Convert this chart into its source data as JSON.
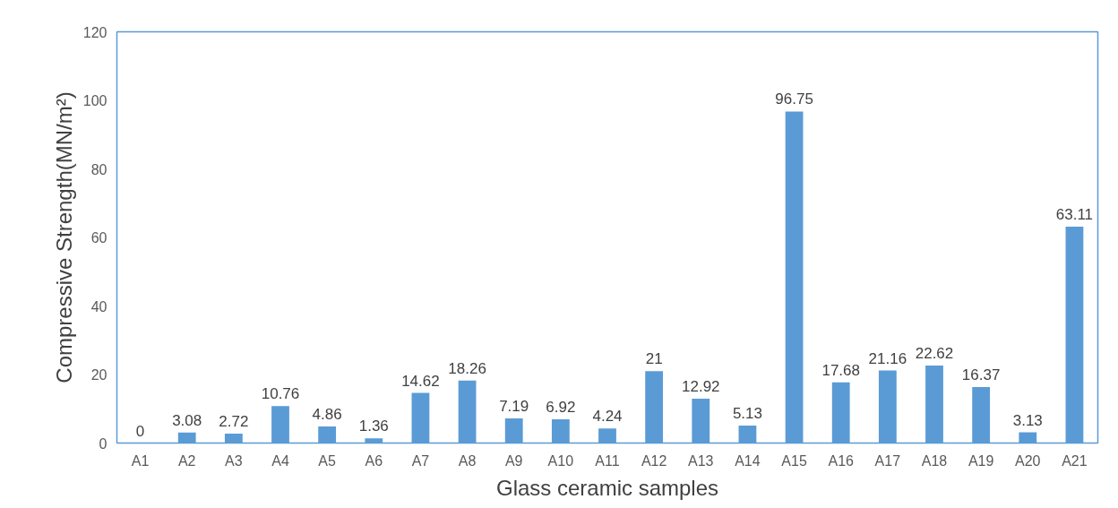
{
  "chart_data": {
    "type": "bar",
    "xlabel": "Glass ceramic samples",
    "ylabel": "Compressive Strength(MN/m²)",
    "categories": [
      "A1",
      "A2",
      "A3",
      "A4",
      "A5",
      "A6",
      "A7",
      "A8",
      "A9",
      "A10",
      "A11",
      "A12",
      "A13",
      "A14",
      "A15",
      "A16",
      "A17",
      "A18",
      "A19",
      "A20",
      "A21"
    ],
    "values": [
      0,
      3.08,
      2.72,
      10.76,
      4.86,
      1.36,
      14.62,
      18.26,
      7.19,
      6.92,
      4.24,
      21,
      12.92,
      5.13,
      96.75,
      17.68,
      21.16,
      22.62,
      16.37,
      3.13,
      63.11
    ],
    "color": "#5b9bd5",
    "ylim": [
      0,
      120
    ],
    "yticks": [
      0,
      20,
      40,
      60,
      80,
      100,
      120
    ],
    "grid": false,
    "data_labels": true
  }
}
